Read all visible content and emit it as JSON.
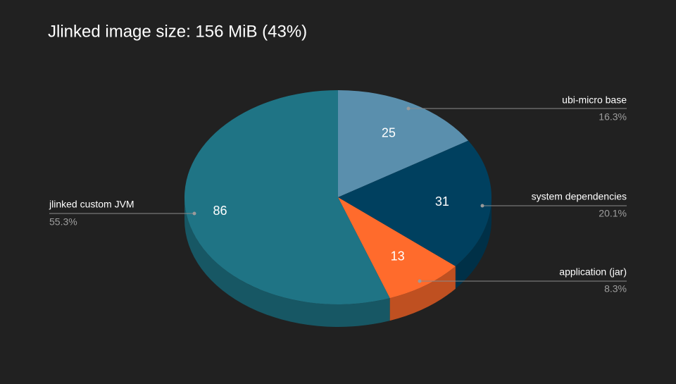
{
  "chart_data": {
    "type": "pie3d",
    "title": "Jlinked image size: 156 MiB (43%)",
    "categories": [
      "ubi-micro base",
      "system dependencies",
      "application (jar)",
      "jlinked custom JVM"
    ],
    "values": [
      25,
      31,
      13,
      86
    ],
    "value_labels": [
      "25",
      "31",
      "13",
      "86"
    ],
    "percent_labels": [
      "16.3%",
      "20.1%",
      "8.3%",
      "55.3%"
    ],
    "colors": [
      "#5a8fad",
      "#00405f",
      "#ff6b2c",
      "#1f7485"
    ]
  }
}
